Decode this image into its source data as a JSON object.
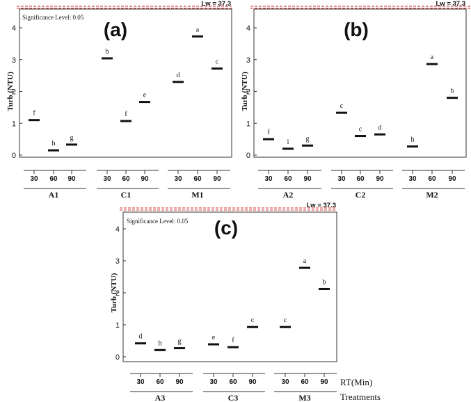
{
  "figure": {
    "rt_label": "RT(Min)",
    "treatments_label": "Treatments"
  },
  "chart_data": [
    {
      "type": "scatter",
      "panel_label": "(a)",
      "lw_label": "Lw = 37.3",
      "significance": "Significance Level: 0.05",
      "ylabel": "Turb (NTU)",
      "ylim": [
        -0.4,
        4.25
      ],
      "yticks": [
        "0",
        "1",
        "2",
        "3",
        "4"
      ],
      "error_style": "black mean bar with small variance",
      "groups": [
        {
          "name": "A1",
          "x": [
            "30",
            "60",
            "90"
          ],
          "values": [
            1.1,
            0.15,
            0.33
          ],
          "letters": [
            "f",
            "h",
            "g"
          ]
        },
        {
          "name": "C1",
          "x": [
            "30",
            "60",
            "90"
          ],
          "values": [
            3.04,
            1.07,
            1.67
          ],
          "letters": [
            "b",
            "f",
            "e"
          ]
        },
        {
          "name": "M1",
          "x": [
            "30",
            "60",
            "90"
          ],
          "values": [
            2.3,
            3.73,
            2.72
          ],
          "letters": [
            "d",
            "a",
            "c"
          ]
        }
      ]
    },
    {
      "type": "scatter",
      "panel_label": "(b)",
      "lw_label": "Lw = 37.3",
      "significance": "",
      "ylabel": "Turb (NTU)",
      "ylim": [
        -0.4,
        4.25
      ],
      "yticks": [
        "0",
        "1",
        "2",
        "3",
        "4"
      ],
      "groups": [
        {
          "name": "A2",
          "x": [
            "30",
            "60",
            "90"
          ],
          "values": [
            0.5,
            0.2,
            0.3
          ],
          "letters": [
            "f",
            "i",
            "g"
          ]
        },
        {
          "name": "C2",
          "x": [
            "30",
            "60",
            "90"
          ],
          "values": [
            1.33,
            0.6,
            0.65
          ],
          "letters": [
            "c",
            "c",
            "d"
          ]
        },
        {
          "name": "M2",
          "x": [
            "30",
            "60",
            "90"
          ],
          "values": [
            0.27,
            2.86,
            1.8
          ],
          "letters": [
            "h",
            "a",
            "b"
          ]
        }
      ]
    },
    {
      "type": "scatter",
      "panel_label": "(c)",
      "lw_label": "Lw = 37.3",
      "significance": "Significance Level: 0.05",
      "ylabel": "Turb (NTU)",
      "ylim": [
        -0.4,
        4.25
      ],
      "yticks": [
        "0",
        "1",
        "2",
        "3",
        "4"
      ],
      "groups": [
        {
          "name": "A3",
          "x": [
            "30",
            "60",
            "90"
          ],
          "values": [
            0.42,
            0.21,
            0.27
          ],
          "letters": [
            "d",
            "h",
            "g"
          ]
        },
        {
          "name": "C3",
          "x": [
            "30",
            "60",
            "90"
          ],
          "values": [
            0.39,
            0.3,
            0.93
          ],
          "letters": [
            "e",
            "f",
            "c"
          ]
        },
        {
          "name": "M3",
          "x": [
            "30",
            "60",
            "90"
          ],
          "values": [
            0.93,
            2.78,
            2.12
          ],
          "letters": [
            "c",
            "a",
            "b"
          ]
        }
      ]
    }
  ]
}
